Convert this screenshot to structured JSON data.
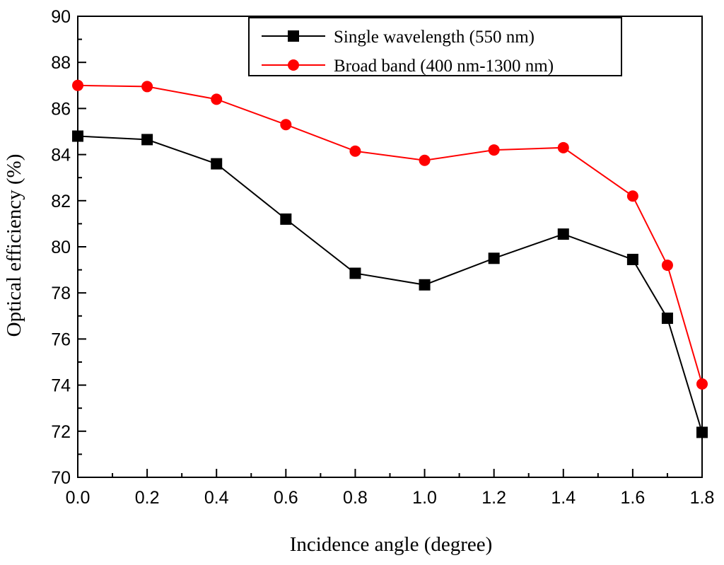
{
  "chart_data": {
    "type": "line",
    "xlabel": "Incidence angle (degree)",
    "ylabel": "Optical efficiency (%)",
    "xlim": [
      0.0,
      1.8
    ],
    "ylim": [
      70,
      90
    ],
    "x_ticks": [
      "0.0",
      "0.2",
      "0.4",
      "0.6",
      "0.8",
      "1.0",
      "1.2",
      "1.4",
      "1.6",
      "1.8"
    ],
    "y_ticks": [
      "70",
      "72",
      "74",
      "76",
      "78",
      "80",
      "82",
      "84",
      "86",
      "88",
      "90"
    ],
    "grid": false,
    "legend_position": "top-right",
    "series": [
      {
        "name": "Single wavelength (550 nm)",
        "color": "#000000",
        "marker": "square",
        "x": [
          0.0,
          0.2,
          0.4,
          0.6,
          0.8,
          1.0,
          1.2,
          1.4,
          1.6,
          1.7,
          1.8
        ],
        "values": [
          84.8,
          84.65,
          83.6,
          81.2,
          78.85,
          78.35,
          79.5,
          80.55,
          79.45,
          76.9,
          71.95
        ]
      },
      {
        "name": "Broad band (400 nm-1300 nm)",
        "color": "#ff0000",
        "marker": "circle",
        "x": [
          0.0,
          0.2,
          0.4,
          0.6,
          0.8,
          1.0,
          1.2,
          1.4,
          1.6,
          1.7,
          1.8
        ],
        "values": [
          87.0,
          86.95,
          86.4,
          85.3,
          84.15,
          83.75,
          84.2,
          84.3,
          82.2,
          79.2,
          74.05
        ]
      }
    ]
  }
}
